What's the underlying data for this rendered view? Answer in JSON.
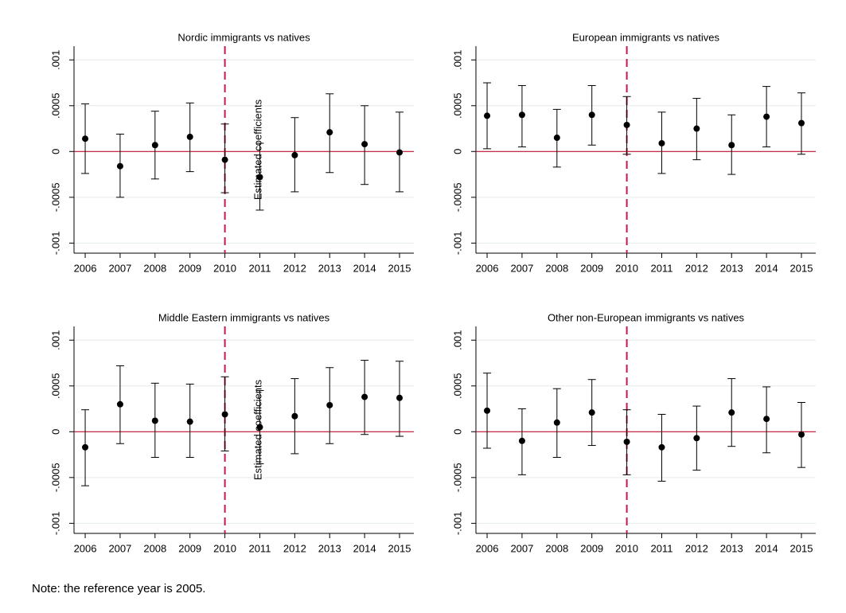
{
  "chart_data": [
    {
      "type": "errorbar",
      "title": "Nordic immigrants vs natives",
      "x": [
        2006,
        2007,
        2008,
        2009,
        2010,
        2011,
        2012,
        2013,
        2014,
        2015
      ],
      "values": [
        0.00014,
        -0.00016,
        7e-05,
        0.00016,
        -9e-05,
        -0.00028,
        -4e-05,
        0.00021,
        8e-05,
        -1e-05
      ],
      "lower": [
        -0.00024,
        -0.0005,
        -0.0003,
        -0.00022,
        -0.00045,
        -0.00064,
        -0.00044,
        -0.00023,
        -0.00036,
        -0.00044
      ],
      "upper": [
        0.00052,
        0.00019,
        0.00044,
        0.00053,
        0.0003,
        9e-05,
        0.00037,
        0.00063,
        0.0005,
        0.00043
      ],
      "xlim": [
        2005.68,
        2015.41
      ],
      "xticks": [
        2006,
        2007,
        2008,
        2009,
        2010,
        2011,
        2012,
        2013,
        2014,
        2015
      ],
      "ylim": [
        -0.00111,
        0.00115
      ],
      "yticks": [
        {
          "value": -0.001,
          "label": "-.001"
        },
        {
          "value": -0.0005,
          "label": "-.0005"
        },
        0,
        {
          "value": 0.0005,
          "label": ".0005"
        },
        {
          "value": 0.001,
          "label": ".001"
        }
      ],
      "grid": true,
      "hline": 0,
      "xline": 2010,
      "color": "#000000",
      "hline_color": "#c0142a",
      "xline_color": "#c8174a"
    },
    {
      "type": "errorbar",
      "title": "European immigrants vs natives",
      "ylabel": "Estimated coefficients",
      "x": [
        2006,
        2007,
        2008,
        2009,
        2010,
        2011,
        2012,
        2013,
        2014,
        2015
      ],
      "values": [
        0.00039,
        0.0004,
        0.00015,
        0.0004,
        0.00029,
        9e-05,
        0.00025,
        7e-05,
        0.00038,
        0.00031
      ],
      "lower": [
        3e-05,
        5e-05,
        -0.00017,
        7e-05,
        -3e-05,
        -0.00024,
        -9e-05,
        -0.00025,
        5e-05,
        -3e-05
      ],
      "upper": [
        0.00075,
        0.00072,
        0.00046,
        0.00072,
        0.0006,
        0.00043,
        0.00058,
        0.0004,
        0.00071,
        0.00064
      ],
      "xlim": [
        2005.68,
        2015.41
      ],
      "xticks": [
        2006,
        2007,
        2008,
        2009,
        2010,
        2011,
        2012,
        2013,
        2014,
        2015
      ],
      "ylim": [
        -0.00111,
        0.00115
      ],
      "yticks": [
        {
          "value": -0.001,
          "label": "-.001"
        },
        {
          "value": -0.0005,
          "label": "-.0005"
        },
        0,
        {
          "value": 0.0005,
          "label": ".0005"
        },
        {
          "value": 0.001,
          "label": ".001"
        }
      ],
      "grid": true,
      "hline": 0,
      "xline": 2010,
      "color": "#000000",
      "hline_color": "#c0142a",
      "xline_color": "#c8174a"
    },
    {
      "type": "errorbar",
      "title": "Middle Eastern immigrants vs natives",
      "x": [
        2006,
        2007,
        2008,
        2009,
        2010,
        2011,
        2012,
        2013,
        2014,
        2015
      ],
      "values": [
        -0.00017,
        0.0003,
        0.00012,
        0.00011,
        0.00019,
        5e-05,
        0.00017,
        0.00029,
        0.00038,
        0.00037
      ],
      "lower": [
        -0.00059,
        -0.00013,
        -0.00028,
        -0.00028,
        -0.00021,
        -0.00035,
        -0.00024,
        -0.00013,
        -3e-05,
        -5e-05
      ],
      "upper": [
        0.00024,
        0.00072,
        0.00053,
        0.00052,
        0.0006,
        0.00045,
        0.00058,
        0.0007,
        0.00078,
        0.00077
      ],
      "xlim": [
        2005.68,
        2015.41
      ],
      "xticks": [
        2006,
        2007,
        2008,
        2009,
        2010,
        2011,
        2012,
        2013,
        2014,
        2015
      ],
      "ylim": [
        -0.00111,
        0.00115
      ],
      "yticks": [
        {
          "value": -0.001,
          "label": "-.001"
        },
        {
          "value": -0.0005,
          "label": "-.0005"
        },
        0,
        {
          "value": 0.0005,
          "label": ".0005"
        },
        {
          "value": 0.001,
          "label": ".001"
        }
      ],
      "grid": true,
      "hline": 0,
      "xline": 2010,
      "color": "#000000",
      "hline_color": "#c0142a",
      "xline_color": "#c8174a"
    },
    {
      "type": "errorbar",
      "title": "Other non-European  immigrants  vs natives",
      "ylabel": "Estimated coefficients",
      "x": [
        2006,
        2007,
        2008,
        2009,
        2010,
        2011,
        2012,
        2013,
        2014,
        2015
      ],
      "values": [
        0.00023,
        -0.0001,
        0.0001,
        0.00021,
        -0.00011,
        -0.00017,
        -7e-05,
        0.00021,
        0.00014,
        -3e-05
      ],
      "lower": [
        -0.00018,
        -0.00047,
        -0.00028,
        -0.00015,
        -0.00047,
        -0.00054,
        -0.00042,
        -0.00016,
        -0.00023,
        -0.00039
      ],
      "upper": [
        0.00064,
        0.00025,
        0.00047,
        0.00057,
        0.00024,
        0.00019,
        0.00028,
        0.00058,
        0.00049,
        0.00032
      ],
      "xlim": [
        2005.68,
        2015.41
      ],
      "xticks": [
        2006,
        2007,
        2008,
        2009,
        2010,
        2011,
        2012,
        2013,
        2014,
        2015
      ],
      "ylim": [
        -0.00111,
        0.00115
      ],
      "yticks": [
        {
          "value": -0.001,
          "label": "-.001"
        },
        {
          "value": -0.0005,
          "label": "-.0005"
        },
        0,
        {
          "value": 0.0005,
          "label": ".0005"
        },
        {
          "value": 0.001,
          "label": ".001"
        }
      ],
      "grid": true,
      "hline": 0,
      "xline": 2010,
      "color": "#000000",
      "hline_color": "#c0142a",
      "xline_color": "#c8174a"
    }
  ],
  "note": "Note: the reference year is 2005."
}
